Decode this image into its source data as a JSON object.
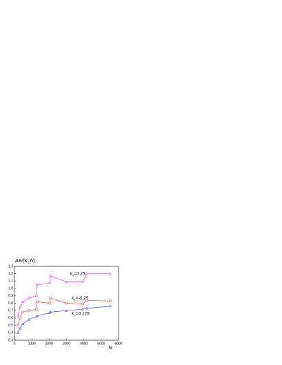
{
  "chart_data": {
    "type": "line",
    "ylabel": [
      "ΔE/(K",
      "C",
      "N)"
    ],
    "xlabel": "N",
    "x": [
      200,
      320,
      480,
      830,
      1270,
      1310,
      2030,
      2070,
      2980,
      3930,
      4170,
      5520
    ],
    "series": [
      {
        "name": "0.25",
        "color": "#e040e0",
        "marker": "circle",
        "values": [
          0.62,
          0.75,
          0.82,
          0.87,
          0.9,
          1.05,
          1.07,
          1.17,
          1.09,
          1.09,
          1.2,
          1.2
        ]
      },
      {
        "name": "-0.25",
        "color": "#e04848",
        "marker": "square",
        "values": [
          0.5,
          0.6,
          0.68,
          0.7,
          0.72,
          0.82,
          0.8,
          0.87,
          0.8,
          0.79,
          0.84,
          0.83
        ]
      },
      {
        "name": "0.125",
        "color": "#4848e0",
        "marker": "triangle",
        "values": [
          0.4,
          0.46,
          0.52,
          0.58,
          0.62,
          0.63,
          0.67,
          0.68,
          0.7,
          0.72,
          0.73,
          0.76
        ]
      }
    ],
    "annotations": [
      {
        "label": [
          "k",
          "s",
          "=0.25"
        ],
        "x": 3200,
        "y": 1.2
      },
      {
        "label": [
          "k",
          "s",
          "=-0.25"
        ],
        "x": 3300,
        "y": 0.87
      },
      {
        "label": [
          "k",
          "s",
          "=0.125"
        ],
        "x": 3300,
        "y": 0.66
      }
    ],
    "xlim": [
      0,
      6000
    ],
    "xticks": [
      0,
      1000,
      2000,
      3000,
      4000,
      5000,
      6000
    ],
    "ylim": [
      0.3,
      1.3
    ],
    "yticks": [
      0.3,
      0.4,
      0.5,
      0.6,
      0.7,
      0.8,
      0.9,
      {
        "value": 1,
        "label": "1.0"
      },
      1.1,
      1.2,
      1.3
    ]
  }
}
